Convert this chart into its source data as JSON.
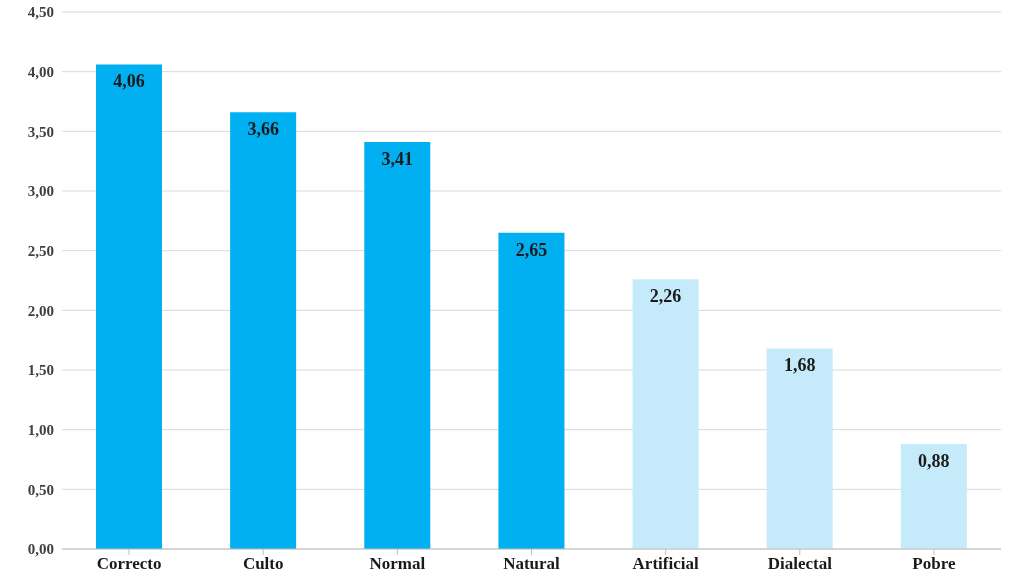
{
  "chart_data": {
    "type": "bar",
    "categories": [
      "Correcto",
      "Culto",
      "Normal",
      "Natural",
      "Artificial",
      "Dialectal",
      "Pobre"
    ],
    "values": [
      4.06,
      3.66,
      3.41,
      2.65,
      2.26,
      1.68,
      0.88
    ],
    "colors": [
      "#00b0f0",
      "#00b0f0",
      "#00b0f0",
      "#00b0f0",
      "#c5ebfa",
      "#c5ebfa",
      "#c5ebfa"
    ],
    "value_labels": [
      "4,06",
      "3,66",
      "3,41",
      "2,65",
      "2,26",
      "1,68",
      "0,88"
    ],
    "ylim": [
      0,
      4.5
    ],
    "yticks": [
      {
        "value": 0,
        "label": "0,00"
      },
      {
        "value": 0.5,
        "label": "0,50"
      },
      {
        "value": 1,
        "label": "1,00"
      },
      {
        "value": 1.5,
        "label": "1,50"
      },
      {
        "value": 2,
        "label": "2,00"
      },
      {
        "value": 2.5,
        "label": "2,50"
      },
      {
        "value": 3,
        "label": "3,00"
      },
      {
        "value": 3.5,
        "label": "3,50"
      },
      {
        "value": 4,
        "label": "4,00"
      },
      {
        "value": 4.5,
        "label": "4,50"
      }
    ],
    "grid": "y"
  }
}
